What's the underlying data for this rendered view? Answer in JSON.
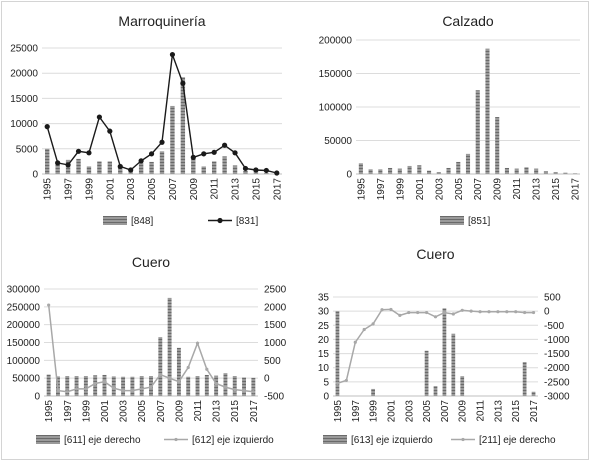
{
  "colors": {
    "bar": "#9a9a9a",
    "bar_dark": "#6a6a6a",
    "line": "#1a1a1a",
    "line_light": "#a8a8a8",
    "grid": "#dcdcdc",
    "axis": "#bfbfbf",
    "text": "#222222"
  },
  "chart_data": [
    {
      "type": "bar",
      "title": "Marroquinería",
      "x": [
        1995,
        1996,
        1997,
        1998,
        1999,
        2000,
        2001,
        2002,
        2003,
        2004,
        2005,
        2006,
        2007,
        2008,
        2009,
        2010,
        2011,
        2012,
        2013,
        2014,
        2015,
        2016,
        2017
      ],
      "x_tick_labels": [
        "1995",
        "1997",
        "1999",
        "2001",
        "2003",
        "2005",
        "2007",
        "2009",
        "2011",
        "2013",
        "2015",
        "2017"
      ],
      "ylim": [
        0,
        25000
      ],
      "y_ticks": [
        0,
        5000,
        10000,
        15000,
        20000,
        25000
      ],
      "y_tick_labels": [
        "0",
        "5000",
        "10000",
        "15000",
        "20000",
        "25000"
      ],
      "series": [
        {
          "name": "[848]",
          "kind": "bar",
          "axis": "left",
          "values": [
            5000,
            2500,
            2800,
            3000,
            1500,
            2500,
            2500,
            1800,
            1000,
            2200,
            2400,
            4500,
            13500,
            19200,
            3000,
            1500,
            2500,
            3500,
            1700,
            600,
            600,
            200,
            100
          ]
        },
        {
          "name": "[831]",
          "kind": "line",
          "axis": "left",
          "marker": "circle",
          "values": [
            9400,
            2200,
            1800,
            4500,
            4200,
            11300,
            8500,
            1500,
            800,
            2600,
            4000,
            6300,
            23700,
            18000,
            3300,
            4000,
            4300,
            5700,
            4200,
            1100,
            800,
            700,
            200
          ]
        }
      ],
      "legend_position": "bottom"
    },
    {
      "type": "bar",
      "title": "Calzado",
      "x": [
        1995,
        1996,
        1997,
        1998,
        1999,
        2000,
        2001,
        2002,
        2003,
        2004,
        2005,
        2006,
        2007,
        2008,
        2009,
        2010,
        2011,
        2012,
        2013,
        2014,
        2015,
        2016,
        2017
      ],
      "x_tick_labels": [
        "1995",
        "1997",
        "1999",
        "2001",
        "2003",
        "2005",
        "2007",
        "2009",
        "2011",
        "2013",
        "2015",
        "2017"
      ],
      "ylim": [
        0,
        200000
      ],
      "y_ticks": [
        0,
        50000,
        100000,
        150000,
        200000
      ],
      "y_tick_labels": [
        "0",
        "50000",
        "100000",
        "150000",
        "200000"
      ],
      "series": [
        {
          "name": "[851]",
          "kind": "bar",
          "axis": "left",
          "values": [
            16000,
            7000,
            7000,
            9000,
            8000,
            12000,
            13000,
            5000,
            3000,
            9000,
            18000,
            30000,
            125000,
            187000,
            85000,
            9000,
            8000,
            10000,
            8000,
            4000,
            3000,
            2000,
            1000
          ]
        }
      ],
      "legend_position": "bottom"
    },
    {
      "type": "bar",
      "title": "Cuero",
      "x": [
        1995,
        1996,
        1997,
        1998,
        1999,
        2000,
        2001,
        2002,
        2003,
        2004,
        2005,
        2006,
        2007,
        2008,
        2009,
        2010,
        2011,
        2012,
        2013,
        2014,
        2015,
        2016,
        2017
      ],
      "x_tick_labels": [
        "1995",
        "1997",
        "1999",
        "2001",
        "2003",
        "2005",
        "2007",
        "2009",
        "2011",
        "2013",
        "2015",
        "2017"
      ],
      "ylim": [
        0,
        300000
      ],
      "y_ticks": [
        0,
        50000,
        100000,
        150000,
        200000,
        250000,
        300000
      ],
      "y_tick_labels": [
        "0",
        "50000",
        "100000",
        "150000",
        "200000",
        "250000",
        "300000"
      ],
      "y2lim": [
        -500,
        2500
      ],
      "y2_ticks": [
        -500,
        0,
        500,
        1000,
        1500,
        2000,
        2500
      ],
      "y2_tick_labels": [
        "-500",
        "0",
        "500",
        "1000",
        "1500",
        "2000",
        "2500"
      ],
      "series": [
        {
          "name": "[611] eje derecho",
          "kind": "bar",
          "axis": "right",
          "values": [
            100,
            50,
            60,
            60,
            60,
            80,
            90,
            50,
            40,
            40,
            60,
            60,
            1150,
            2250,
            850,
            40,
            60,
            90,
            70,
            140,
            60,
            20,
            10
          ]
        },
        {
          "name": "[612] eje izquierdo",
          "kind": "line",
          "axis": "left",
          "values": [
            255000,
            15000,
            12000,
            20000,
            20000,
            35000,
            40000,
            22000,
            15000,
            15000,
            20000,
            25000,
            60000,
            50000,
            40000,
            80000,
            148000,
            75000,
            35000,
            25000,
            18000,
            15000,
            12000
          ]
        }
      ],
      "legend_position": "bottom"
    },
    {
      "type": "bar",
      "title": "Cuero",
      "x": [
        1995,
        1996,
        1997,
        1998,
        1999,
        2000,
        2001,
        2002,
        2003,
        2004,
        2005,
        2006,
        2007,
        2008,
        2009,
        2010,
        2011,
        2012,
        2013,
        2014,
        2015,
        2016,
        2017
      ],
      "x_tick_labels": [
        "1995",
        "1997",
        "1999",
        "2001",
        "2003",
        "2005",
        "2007",
        "2009",
        "2011",
        "2013",
        "2015",
        "2017"
      ],
      "ylim": [
        0,
        35
      ],
      "y_ticks": [
        0,
        5,
        10,
        15,
        20,
        25,
        30,
        35
      ],
      "y_tick_labels": [
        "0",
        "5",
        "10",
        "15",
        "20",
        "25",
        "30",
        "35"
      ],
      "y2lim": [
        -3000,
        500
      ],
      "y2_ticks": [
        -3000,
        -2500,
        -2000,
        -1500,
        -1000,
        -500,
        0,
        500
      ],
      "y2_tick_labels": [
        "-3000",
        "-2500",
        "-2000",
        "-1500",
        "-1000",
        "-500",
        "0",
        "500"
      ],
      "series": [
        {
          "name": "[613] eje izquierdo",
          "kind": "bar",
          "axis": "left",
          "values": [
            30,
            0,
            0,
            0,
            2.5,
            0,
            0,
            0,
            0,
            0,
            16,
            3.5,
            31,
            22,
            7,
            0,
            0,
            0,
            0,
            0,
            0,
            12,
            1.5
          ]
        },
        {
          "name": "[211] eje derecho",
          "kind": "line",
          "axis": "right",
          "marker": "small",
          "values": [
            -2550,
            -2450,
            -1100,
            -650,
            -450,
            50,
            60,
            -150,
            -50,
            -50,
            -50,
            -200,
            -50,
            -100,
            30,
            0,
            -20,
            -20,
            -20,
            -20,
            -20,
            -50,
            -50
          ]
        }
      ],
      "legend_position": "bottom"
    }
  ]
}
